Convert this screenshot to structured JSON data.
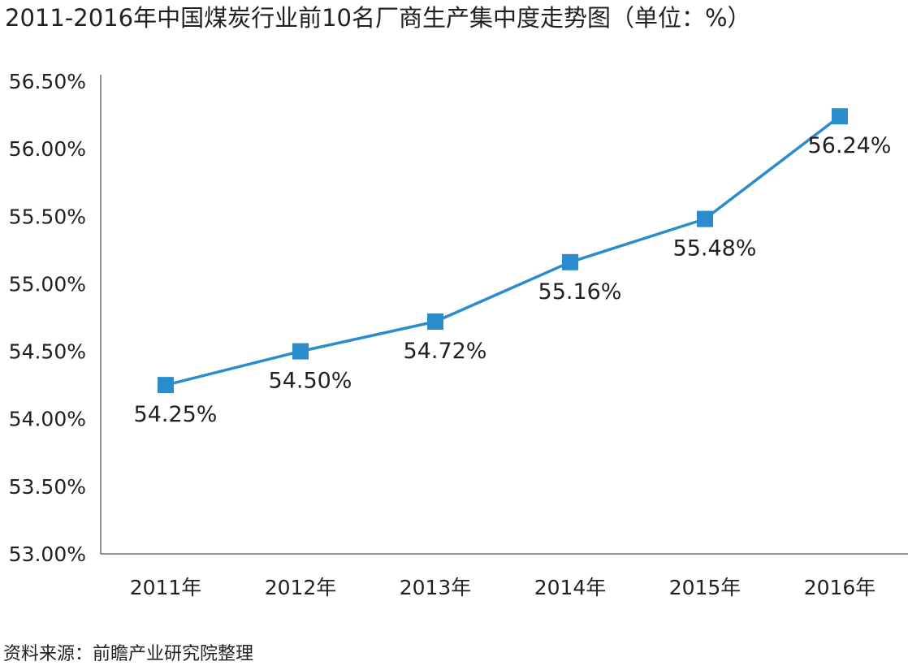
{
  "title": "2011-2016年中国煤炭行业前10名厂商生产集中度走势图（单位：%）",
  "source": "资料来源：前瞻产业研究院整理",
  "colors": {
    "series": "#2a8ccd",
    "axis": "#6d6e71",
    "text": "#231f20"
  },
  "chart_data": {
    "type": "line",
    "title": "2011-2016年中国煤炭行业前10名厂商生产集中度走势图（单位：%）",
    "xlabel": "",
    "ylabel": "",
    "categories": [
      "2011年",
      "2012年",
      "2013年",
      "2014年",
      "2015年",
      "2016年"
    ],
    "series": [
      {
        "values": [
          54.25,
          54.5,
          54.72,
          55.16,
          55.48,
          56.24
        ],
        "labels": [
          "54.25%",
          "54.50%",
          "54.72%",
          "55.16%",
          "55.48%",
          "56.24%"
        ],
        "marker": "square"
      }
    ],
    "ylim": [
      53.0,
      56.5
    ],
    "yticks": [
      53.0,
      53.5,
      54.0,
      54.5,
      55.0,
      55.5,
      56.0,
      56.5
    ],
    "ytick_labels": [
      "53.00%",
      "53.50%",
      "54.00%",
      "54.50%",
      "55.00%",
      "55.50%",
      "56.00%",
      "56.50%"
    ],
    "grid": false,
    "legend": "none"
  }
}
